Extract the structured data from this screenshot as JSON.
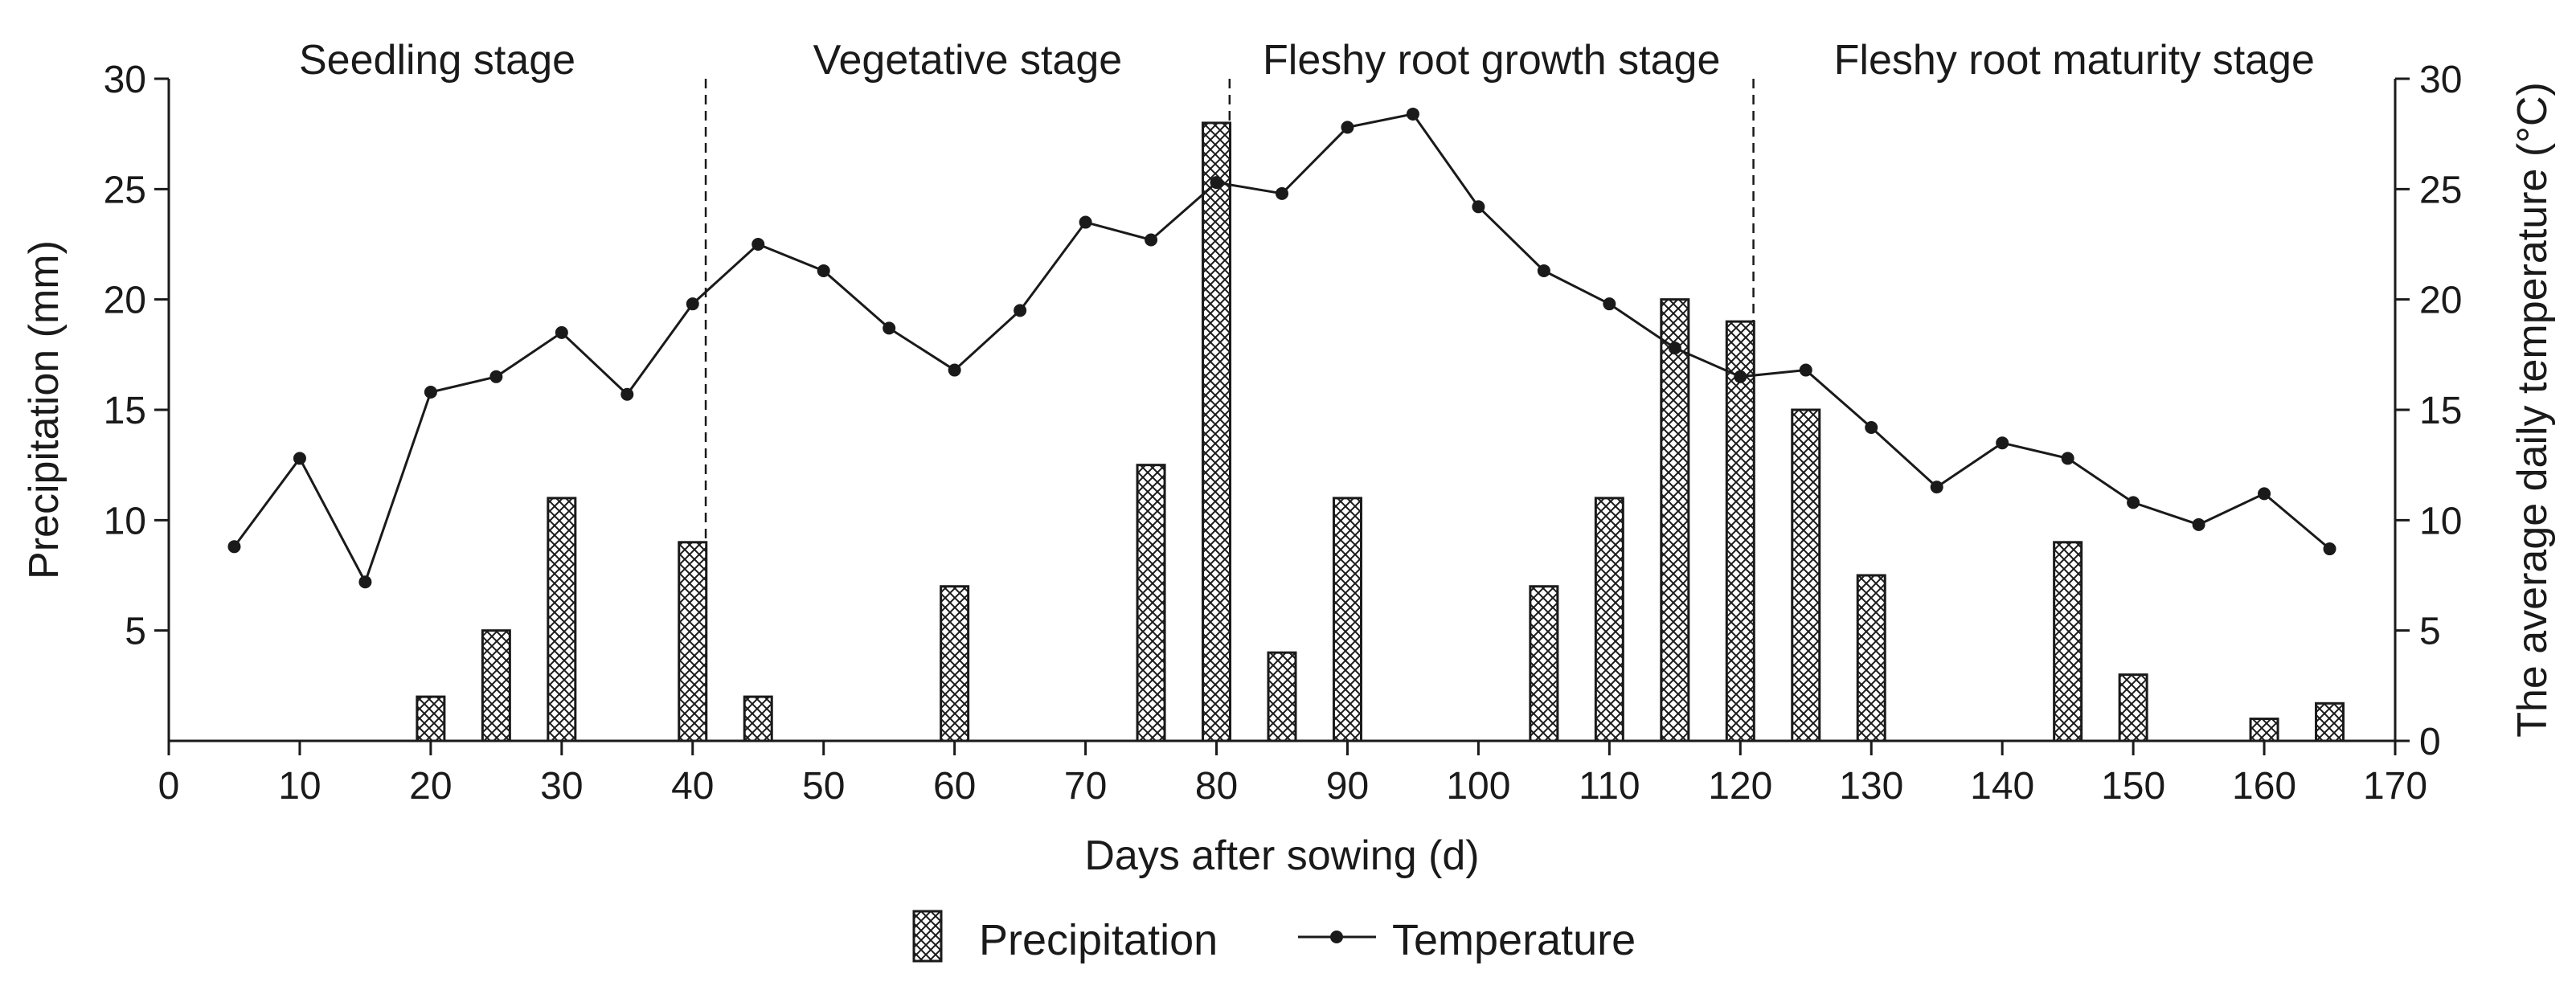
{
  "chart_data": {
    "type": "bar+line",
    "xlabel": "Days after sowing (d)",
    "ylabel_left": "Precipitation (mm)",
    "ylabel_right": "The average daily temperature (°C)",
    "xlim": [
      0,
      170
    ],
    "ylim_left": [
      0,
      30
    ],
    "ylim_right": [
      0,
      30
    ],
    "x_ticks": [
      0,
      10,
      20,
      30,
      40,
      50,
      60,
      70,
      80,
      90,
      100,
      110,
      120,
      130,
      140,
      150,
      160,
      170
    ],
    "y_ticks_left": [
      5,
      10,
      15,
      20,
      25,
      30
    ],
    "y_ticks_right": [
      0,
      5,
      10,
      15,
      20,
      25,
      30
    ],
    "grid": false,
    "stages": [
      {
        "label": "Seedling stage",
        "start": 0,
        "end": 41
      },
      {
        "label": "Vegetative stage",
        "start": 41,
        "end": 81
      },
      {
        "label": "Fleshy root growth stage",
        "start": 81,
        "end": 121
      },
      {
        "label": "Fleshy root maturity stage",
        "start": 121,
        "end": 170
      }
    ],
    "stage_boundaries": [
      41,
      81,
      121
    ],
    "legend_position": "bottom-center",
    "series": [
      {
        "name": "Precipitation",
        "kind": "bar",
        "pattern": "crosshatch",
        "x": [
          20,
          25,
          30,
          40,
          45,
          60,
          75,
          80,
          85,
          90,
          105,
          110,
          115,
          120,
          125,
          130,
          145,
          150,
          160,
          165
        ],
        "values": [
          2,
          5,
          11,
          9,
          2,
          7,
          12.5,
          28,
          4,
          11,
          7,
          11,
          20,
          19,
          15,
          7.5,
          9,
          3,
          1,
          1.7
        ]
      },
      {
        "name": "Temperature",
        "kind": "line",
        "marker": "circle",
        "x": [
          5,
          10,
          15,
          20,
          25,
          30,
          35,
          40,
          45,
          50,
          55,
          60,
          65,
          70,
          75,
          80,
          85,
          90,
          95,
          100,
          105,
          110,
          115,
          120,
          125,
          130,
          135,
          140,
          145,
          150,
          155,
          160,
          165
        ],
        "values": [
          8.8,
          12.8,
          7.2,
          15.8,
          16.5,
          18.5,
          15.7,
          19.8,
          22.5,
          21.3,
          18.7,
          16.8,
          19.5,
          23.5,
          22.7,
          25.3,
          24.8,
          27.8,
          28.4,
          24.2,
          21.3,
          19.8,
          17.8,
          16.5,
          16.8,
          14.2,
          11.5,
          13.5,
          12.8,
          10.8,
          9.8,
          11.2,
          8.7
        ]
      }
    ]
  },
  "colors": {
    "axis": "#1a1a1a",
    "bar_fill": "#ffffff",
    "bar_hatch": "#1a1a1a",
    "line": "#1a1a1a"
  }
}
